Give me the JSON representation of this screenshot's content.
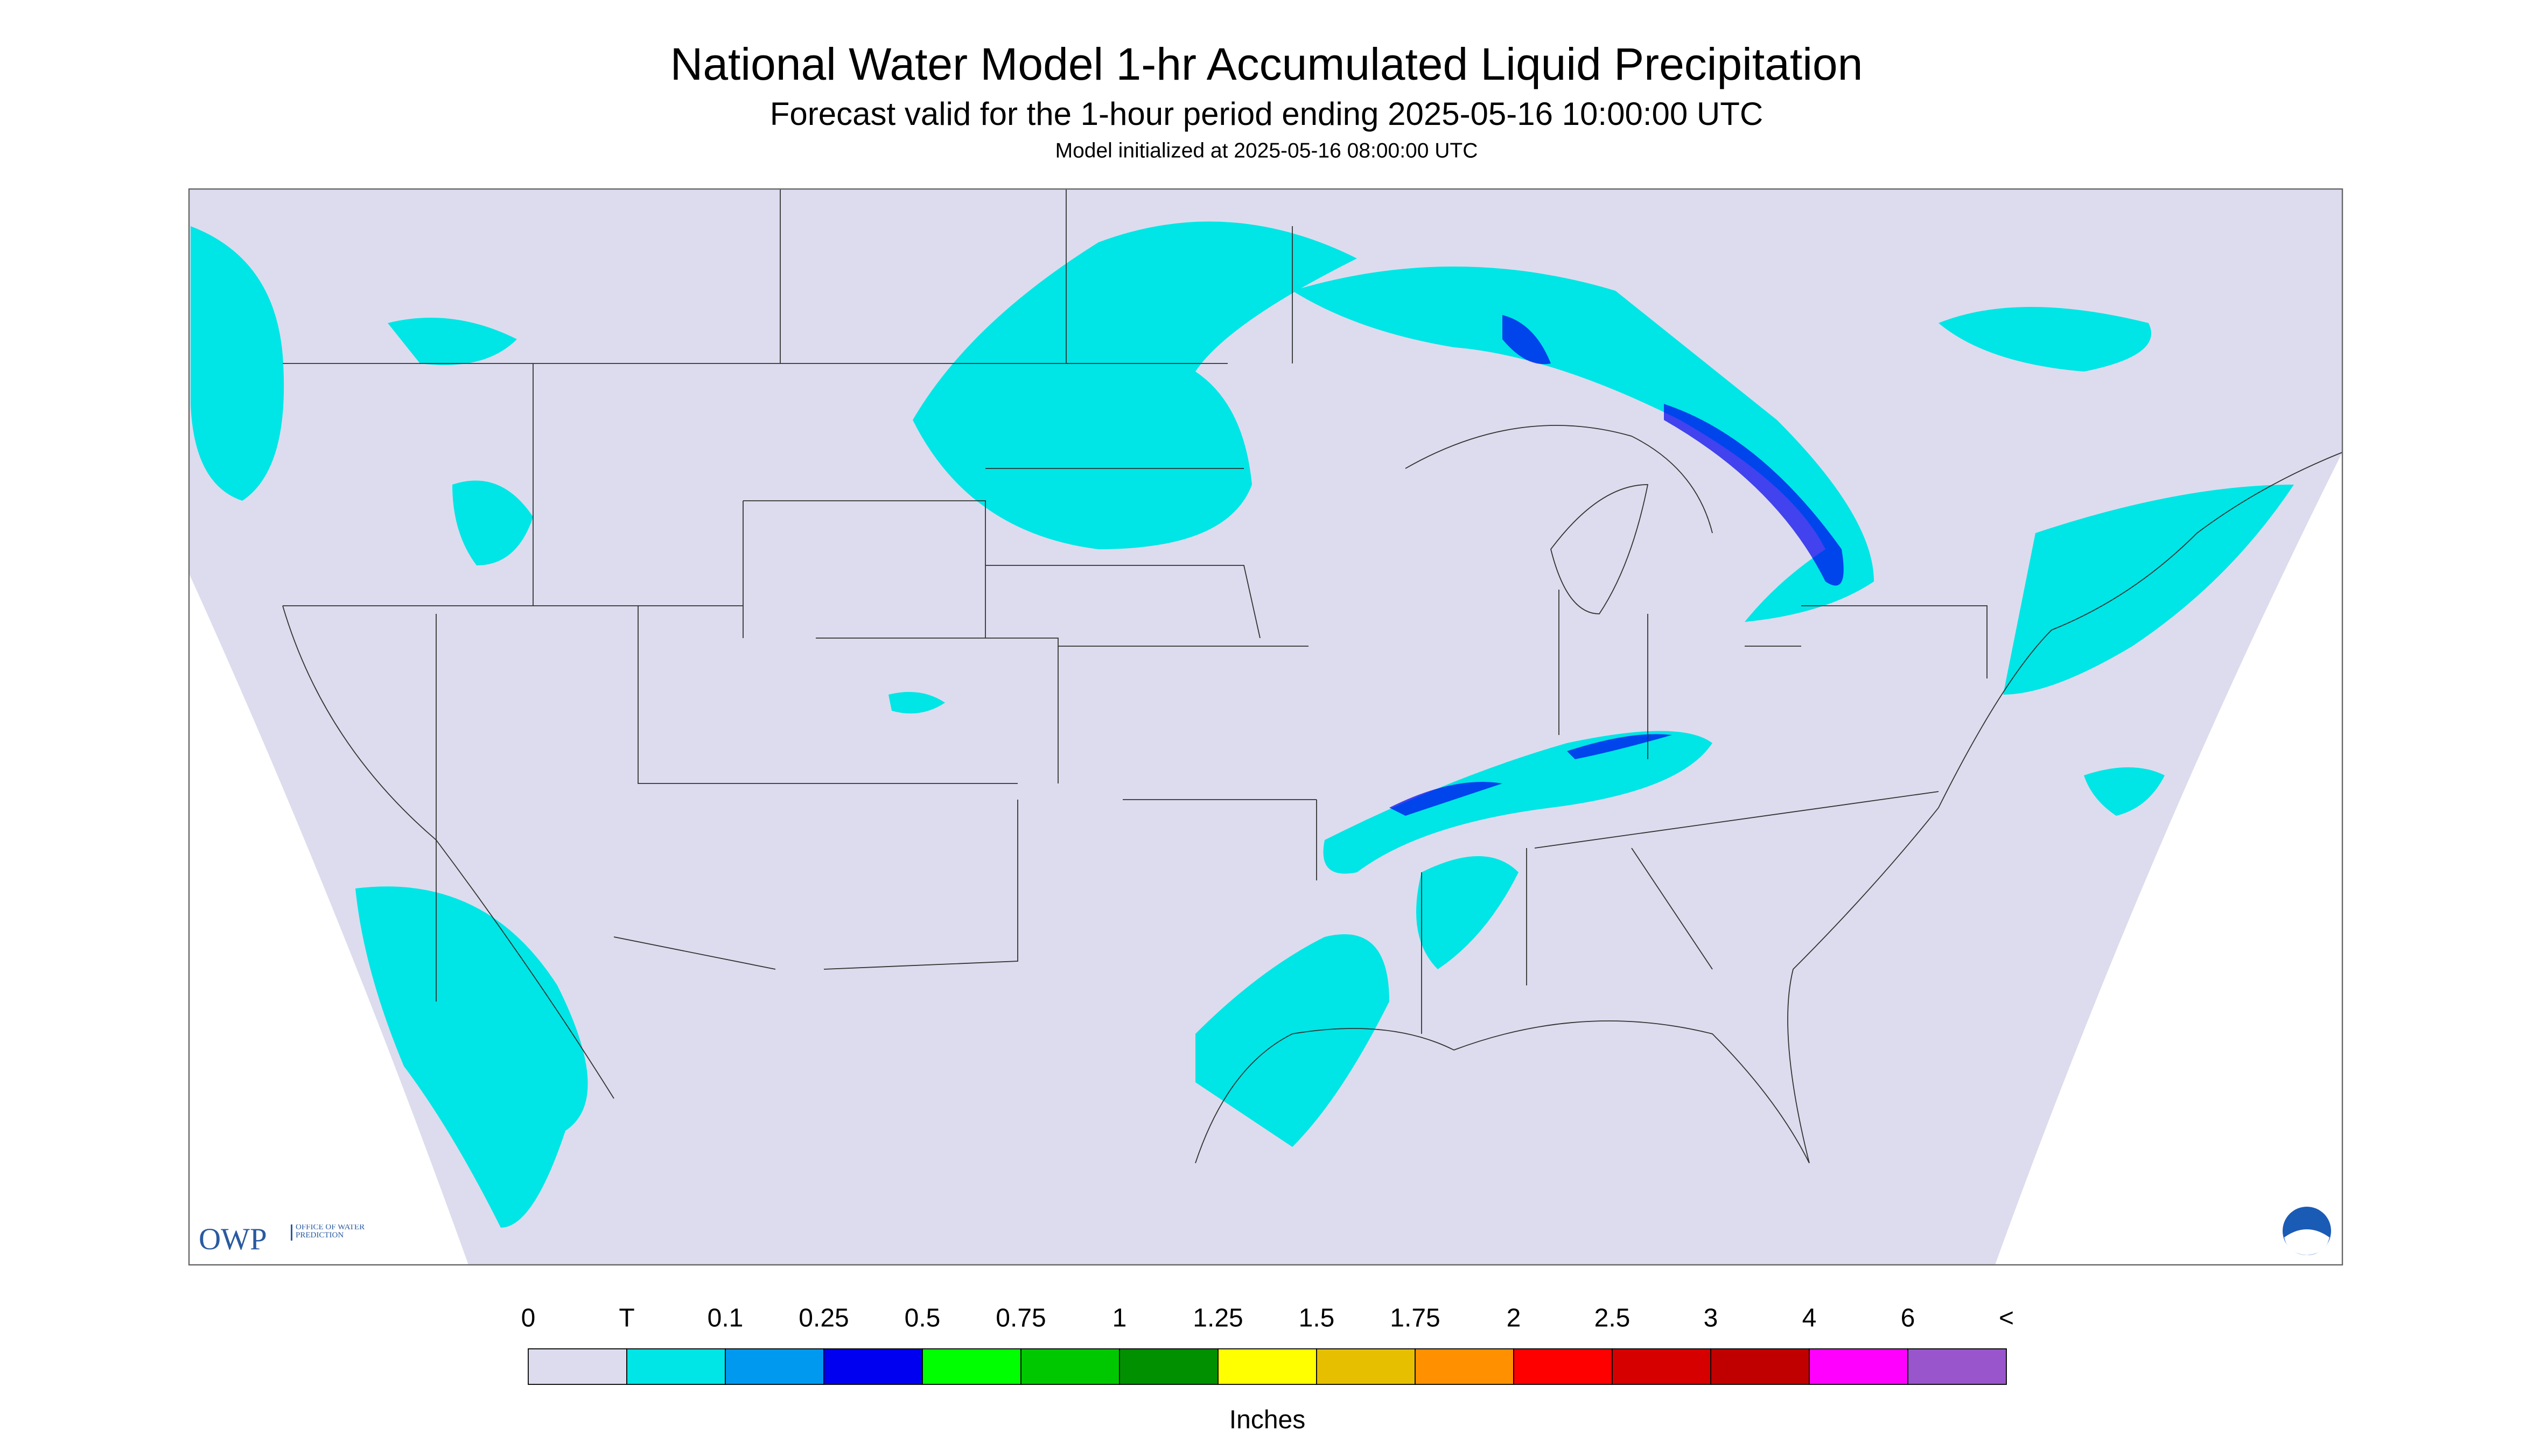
{
  "header": {
    "title": "National Water Model 1-hr Accumulated Liquid Precipitation",
    "subtitle": "Forecast valid for the 1-hour period ending 2025-05-16 10:00:00 UTC",
    "note": "Model initialized at 2025-05-16 08:00:00 UTC"
  },
  "legend": {
    "labels": [
      "0",
      "T",
      "0.1",
      "0.25",
      "0.5",
      "0.75",
      "1",
      "1.25",
      "1.5",
      "1.75",
      "2",
      "2.5",
      "3",
      "4",
      "6",
      "<"
    ],
    "colors": [
      "#dcdcee",
      "#00e5e5",
      "#0099f0",
      "#0000f0",
      "#00ff00",
      "#00c800",
      "#009000",
      "#ffff00",
      "#e6c000",
      "#ff9000",
      "#ff0000",
      "#d60000",
      "#c00000",
      "#ff00ff",
      "#9955cc"
    ],
    "unit": "Inches"
  },
  "logo": {
    "text": "OWP",
    "subtext": "OFFICE OF WATER PREDICTION"
  }
}
